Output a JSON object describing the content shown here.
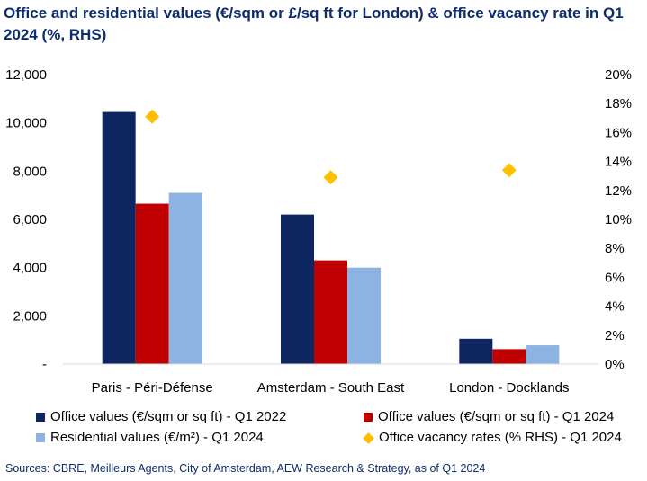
{
  "title": "Office and residential values (€/sqm or £/sq ft for London) & office vacancy rate in Q1 2024 (%, RHS)",
  "source": "Sources: CBRE, Meilleurs Agents, City of Amsterdam, AEW Research & Strategy, as of Q1 2024",
  "chart_data": {
    "type": "bar",
    "title": "Office and residential values (€/sqm or £/sq ft for London) & office vacancy rate in Q1 2024 (%, RHS)",
    "categories": [
      "Paris - Péri-Défense",
      "Amsterdam - South East",
      "London - Docklands"
    ],
    "series": [
      {
        "name": "Office values (€/sqm or sq ft) - Q1 2022",
        "type": "bar",
        "axis": "left",
        "color": "#0d2561",
        "values": [
          10450,
          6200,
          1050
        ]
      },
      {
        "name": "Office values (€/sqm or sq ft) - Q1 2024",
        "type": "bar",
        "axis": "left",
        "color": "#c00000",
        "values": [
          6650,
          4300,
          620
        ]
      },
      {
        "name": "Residential values (€/m²) - Q1 2024",
        "type": "bar",
        "axis": "left",
        "color": "#8db3e2",
        "values": [
          7100,
          4000,
          780
        ]
      },
      {
        "name": "Office vacancy rates (% RHS) - Q1 2024",
        "type": "scatter",
        "marker": "diamond",
        "axis": "right",
        "color": "#ffc000",
        "values": [
          17.1,
          12.9,
          13.4
        ]
      }
    ],
    "y_left": {
      "ylim": [
        0,
        12000
      ],
      "ticks": [
        0,
        2000,
        4000,
        6000,
        8000,
        10000,
        12000
      ],
      "tick_labels": [
        "-",
        "2,000",
        "4,000",
        "6,000",
        "8,000",
        "10,000",
        "12,000"
      ]
    },
    "y_right": {
      "ylim": [
        0,
        20
      ],
      "ticks": [
        0,
        2,
        4,
        6,
        8,
        10,
        12,
        14,
        16,
        18,
        20
      ],
      "tick_labels": [
        "0%",
        "2%",
        "4%",
        "6%",
        "8%",
        "10%",
        "12%",
        "14%",
        "16%",
        "18%",
        "20%"
      ]
    },
    "grid": false,
    "legend_position": "bottom"
  }
}
